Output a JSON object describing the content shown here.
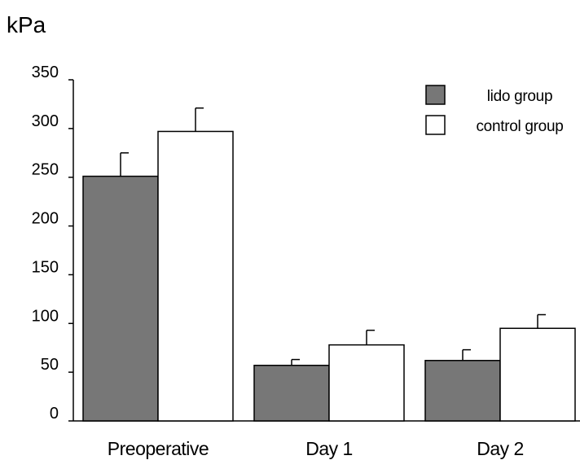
{
  "chart_data": {
    "type": "bar",
    "ylabel": "kPa",
    "ylim": [
      0,
      350
    ],
    "yticks": [
      0,
      50,
      100,
      150,
      200,
      250,
      300,
      350
    ],
    "categories": [
      "Preoperative",
      "Day 1",
      "Day 2"
    ],
    "series": [
      {
        "name": "lido group",
        "color": "#777777",
        "values": [
          251,
          57,
          62
        ],
        "errors": [
          24,
          6,
          11
        ]
      },
      {
        "name": "control group",
        "color": "#ffffff",
        "values": [
          297,
          78,
          95
        ],
        "errors": [
          24,
          15,
          14
        ]
      }
    ],
    "legend": "top-right",
    "grid": false
  }
}
